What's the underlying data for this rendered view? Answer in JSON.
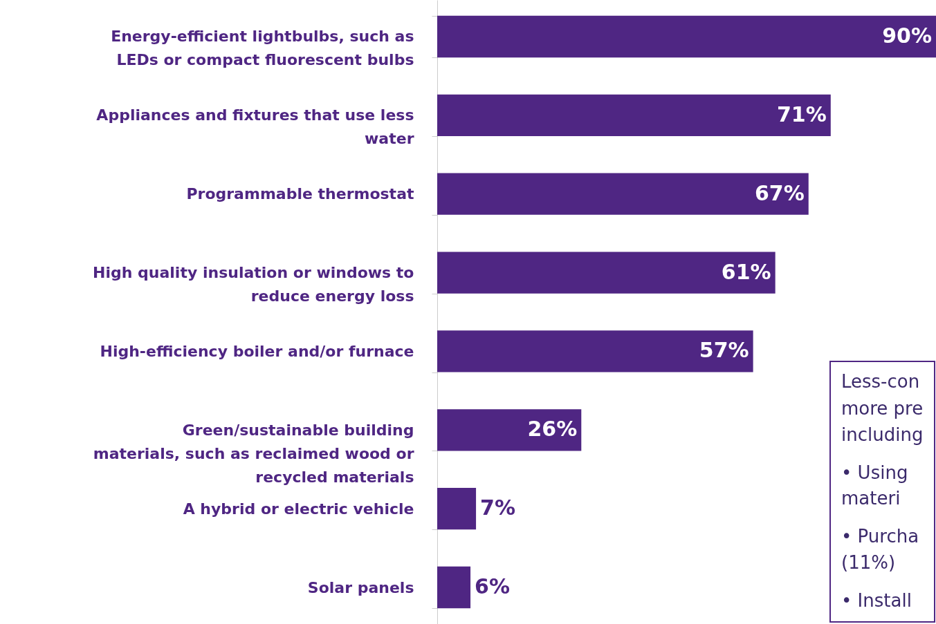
{
  "chart_data": {
    "type": "bar",
    "orientation": "horizontal",
    "data_labels": true,
    "categories": [
      "Energy-efficient lightbulbs, such as\nLEDs or compact fluorescent bulbs",
      "Appliances and fixtures that use less\nwater",
      "Programmable thermostat",
      "High quality insulation or windows to\nreduce energy loss",
      "High-efficiency boiler and/or furnace",
      "Green/sustainable building\nmaterials, such as reclaimed wood or\nrecycled materials",
      "A hybrid or electric vehicle",
      "Solar panels"
    ],
    "values": [
      90,
      71,
      67,
      61,
      57,
      26,
      7,
      6
    ],
    "color": "#4f2683",
    "value_labels": [
      "90%",
      "71%",
      "67%",
      "61%",
      "57%",
      "26%",
      "7%",
      "6%"
    ],
    "annotations": [
      "Less-con",
      "more pre",
      "including",
      "•  Using",
      "materi",
      "•  Purcha",
      "(11%)",
      "•  Install"
    ]
  }
}
